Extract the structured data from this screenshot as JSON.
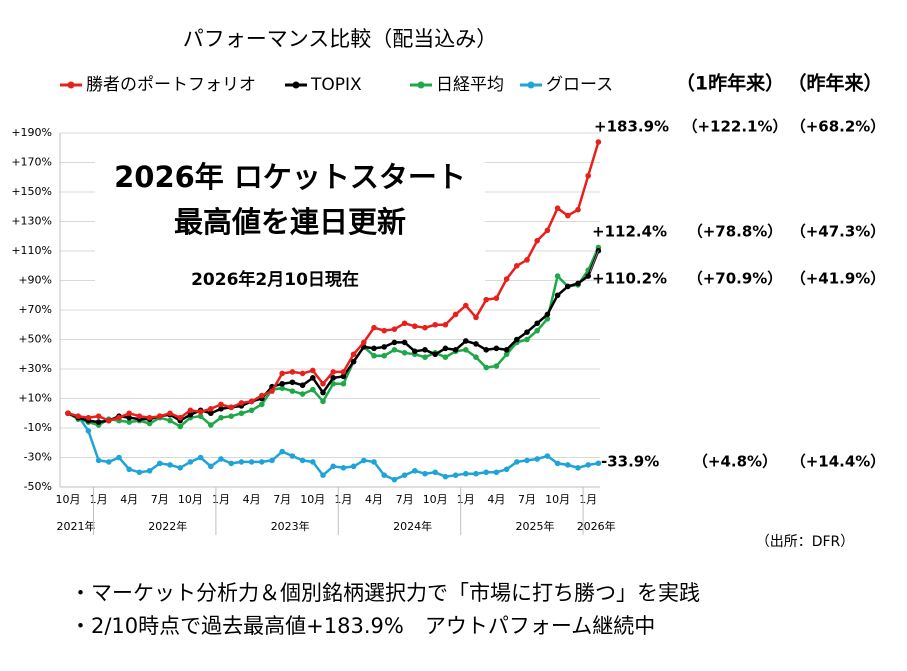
{
  "chart_data": {
    "type": "line",
    "title": "パフォーマンス比較（配当込み）",
    "headline": "2026年 ロケットスタート",
    "subheadline": "最高値を連日更新",
    "as_of": "2026年2月10日現在",
    "source": "（出所：DFR）",
    "column_headers": [
      "（1昨年来）",
      "（昨年来）"
    ],
    "categories": [
      "10月",
      null,
      null,
      "1月",
      null,
      null,
      "4月",
      null,
      null,
      "7月",
      null,
      null,
      "10月",
      null,
      null,
      "1月",
      null,
      null,
      "4月",
      null,
      null,
      "7月",
      null,
      null,
      "10月",
      null,
      null,
      "1月",
      null,
      null,
      "4月",
      null,
      null,
      "7月",
      null,
      null,
      "10月",
      null,
      null,
      "1月",
      null,
      null,
      "4月",
      null,
      null,
      "7月",
      null,
      null,
      "10月",
      null,
      null,
      "1月",
      null
    ],
    "category_years": [
      "2021年",
      null,
      null,
      null,
      null,
      null,
      null,
      null,
      null,
      "2022年",
      null,
      null,
      null,
      null,
      null,
      null,
      null,
      null,
      null,
      null,
      null,
      "2023年",
      null,
      null,
      null,
      null,
      null,
      null,
      null,
      null,
      null,
      null,
      null,
      "2024年",
      null,
      null,
      null,
      null,
      null,
      null,
      null,
      null,
      null,
      null,
      null,
      "2025年",
      null,
      null,
      null,
      null,
      null,
      "2026年",
      null
    ],
    "ylim": [
      -50,
      190
    ],
    "yticks": [
      {
        "value": -50,
        "label": "-50%"
      },
      {
        "value": -30,
        "label": "-30%"
      },
      {
        "value": -10,
        "label": "-10%"
      },
      {
        "value": 10,
        "label": "+10%"
      },
      {
        "value": 30,
        "label": "+30%"
      },
      {
        "value": 50,
        "label": "+50%"
      },
      {
        "value": 70,
        "label": "+70%"
      },
      {
        "value": 90,
        "label": "+90%"
      },
      {
        "value": 110,
        "label": "+110%"
      },
      {
        "value": 130,
        "label": "+130%"
      },
      {
        "value": 150,
        "label": "+150%"
      },
      {
        "value": 170,
        "label": "+170%"
      },
      {
        "value": 190,
        "label": "+190%"
      }
    ],
    "grid": true,
    "series": [
      {
        "name": "勝者のポートフォリオ",
        "color": "#e8201c",
        "values": [
          0,
          -2,
          -3,
          -2,
          -5,
          -3,
          0,
          -2,
          -3,
          -2,
          0,
          -3,
          2,
          1,
          3,
          6,
          4,
          7,
          8,
          12,
          15,
          27,
          28,
          27,
          29,
          20,
          28,
          28,
          40,
          48,
          58,
          56,
          57,
          61,
          59,
          58,
          60,
          60,
          67,
          73,
          65,
          77,
          78,
          91,
          100,
          104,
          117,
          124,
          139,
          134,
          138,
          161,
          183.9
        ],
        "last_label": "+183.9%",
        "since_2y": "（+122.1%）",
        "since_1y": "（+68.2%）"
      },
      {
        "name": "TOPIX",
        "color": "#000000",
        "values": [
          0,
          -3,
          -5,
          -6,
          -5,
          -2,
          -3,
          -4,
          -4,
          -2,
          -1,
          -5,
          -1,
          2,
          0,
          3,
          4,
          5,
          8,
          10,
          18,
          20,
          21,
          19,
          24,
          14,
          24,
          25,
          35,
          45,
          44,
          45,
          48,
          48,
          42,
          43,
          40,
          44,
          43,
          49,
          47,
          43,
          44,
          43,
          50,
          55,
          61,
          67,
          80,
          86,
          88,
          93,
          110.2
        ],
        "last_label": "+110.2%",
        "since_2y": "（+70.9%）",
        "since_1y": "（+41.9%）"
      },
      {
        "name": "日経平均",
        "color": "#1ea84a",
        "values": [
          0,
          -4,
          -6,
          -8,
          -4,
          -5,
          -6,
          -5,
          -7,
          -3,
          -5,
          -9,
          -3,
          -2,
          -8,
          -3,
          -2,
          0,
          2,
          6,
          16,
          17,
          15,
          13,
          16,
          8,
          20,
          20,
          35,
          45,
          39,
          39,
          43,
          41,
          40,
          38,
          41,
          38,
          42,
          43,
          38,
          31,
          32,
          40,
          48,
          50,
          56,
          64,
          93,
          86,
          87,
          97,
          112.4
        ],
        "last_label": "+112.4%",
        "since_2y": "（+78.8%）",
        "since_1y": "（+47.3%）"
      },
      {
        "name": "グロース",
        "color": "#1ea4d8",
        "values": [
          0,
          -2,
          -12,
          -32,
          -33,
          -30,
          -38,
          -40,
          -39,
          -34,
          -35,
          -37,
          -33,
          -30,
          -36,
          -31,
          -34,
          -33,
          -33,
          -33,
          -32,
          -26,
          -29,
          -32,
          -33,
          -42,
          -36,
          -37,
          -36,
          -32,
          -33,
          -42,
          -45,
          -42,
          -39,
          -41,
          -40,
          -43,
          -42,
          -41,
          -41,
          -40,
          -40,
          -38,
          -33,
          -32,
          -31,
          -29,
          -34,
          -35,
          -37,
          -35,
          -33.9
        ],
        "last_label": "-33.9%",
        "since_2y": "（+4.8%）",
        "since_1y": "（+14.4%）"
      }
    ],
    "notes": [
      "・マーケット分析力＆個別銘柄選択力で「市場に打ち勝つ」を実践",
      "・2/10時点で過去最高値+183.9%　アウトパフォーム継続中"
    ]
  }
}
